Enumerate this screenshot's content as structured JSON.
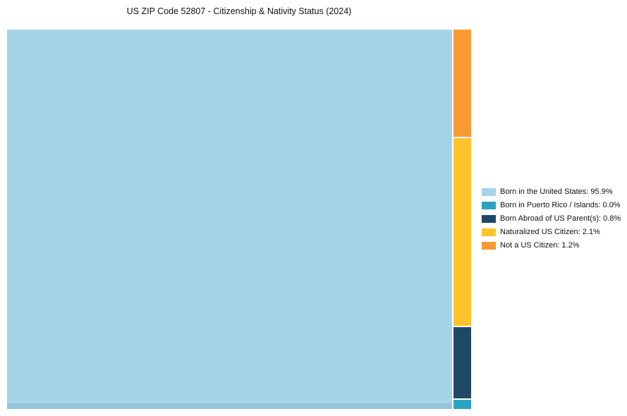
{
  "chart_data": {
    "type": "treemap",
    "title": "US ZIP Code 52807 - Citizenship & Nativity Status (2024)",
    "categories": [
      "Born in the United States",
      "Born in Puerto Rico / Islands",
      "Born Abroad of US Parent(s)",
      "Naturalized US Citizen",
      "Not a US Citizen"
    ],
    "values": [
      95.9,
      0.0,
      0.8,
      2.1,
      1.2
    ],
    "colors": [
      "#a5d3e8",
      "#2aa3c0",
      "#1f4866",
      "#fcc32c",
      "#f79a32"
    ],
    "legend_position": "right",
    "legend_labels": [
      "Born in the United States: 95.9%",
      "Born in Puerto Rico / Islands: 0.0%",
      "Born Abroad of US Parent(s): 0.8%",
      "Naturalized US Citizen: 2.1%",
      "Not a US Citizen: 1.2%"
    ],
    "main_category": "Born in the United States",
    "column_order_top_to_bottom": [
      "Not a US Citizen",
      "Naturalized US Citizen",
      "Born Abroad of US Parent(s)",
      "Born in Puerto Rico / Islands"
    ],
    "min_segment_weight": 0.1
  }
}
